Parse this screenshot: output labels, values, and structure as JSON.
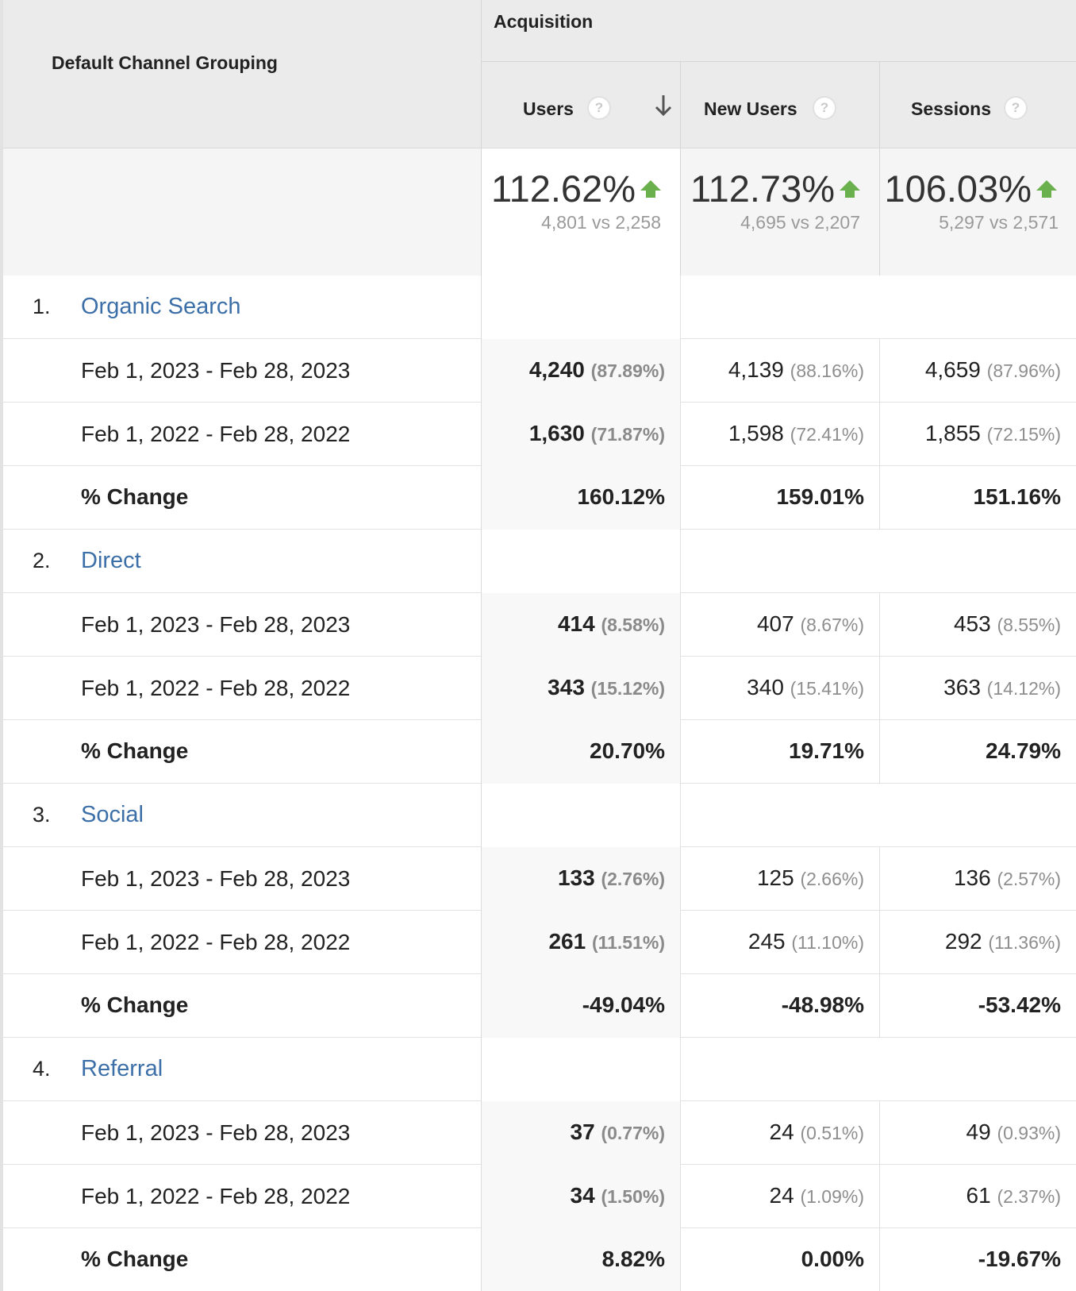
{
  "header": {
    "dimension_title": "Default Channel Grouping",
    "group_title": "Acquisition",
    "columns": [
      {
        "label": "Users",
        "help": "?",
        "sorted": true
      },
      {
        "label": "New Users",
        "help": "?"
      },
      {
        "label": "Sessions",
        "help": "?"
      }
    ]
  },
  "colors": {
    "up_arrow": "#6ab04c",
    "link": "#3c6fa8"
  },
  "summary": [
    {
      "pct": "112.62%",
      "compare": "4,801 vs 2,258"
    },
    {
      "pct": "112.73%",
      "compare": "4,695 vs 2,207"
    },
    {
      "pct": "106.03%",
      "compare": "5,297 vs 2,571"
    }
  ],
  "channels": [
    {
      "num": "1.",
      "name": "Organic Search",
      "current": {
        "label": "Feb 1, 2023 - Feb 28, 2023",
        "users": "4,240",
        "users_pct": "(87.89%)",
        "new_users": "4,139",
        "new_users_pct": "(88.16%)",
        "sessions": "4,659",
        "sessions_pct": "(87.96%)"
      },
      "previous": {
        "label": "Feb 1, 2022 - Feb 28, 2022",
        "users": "1,630",
        "users_pct": "(71.87%)",
        "new_users": "1,598",
        "new_users_pct": "(72.41%)",
        "sessions": "1,855",
        "sessions_pct": "(72.15%)"
      },
      "change": {
        "label": "% Change",
        "users": "160.12%",
        "new_users": "159.01%",
        "sessions": "151.16%"
      }
    },
    {
      "num": "2.",
      "name": "Direct",
      "current": {
        "label": "Feb 1, 2023 - Feb 28, 2023",
        "users": "414",
        "users_pct": "(8.58%)",
        "new_users": "407",
        "new_users_pct": "(8.67%)",
        "sessions": "453",
        "sessions_pct": "(8.55%)"
      },
      "previous": {
        "label": "Feb 1, 2022 - Feb 28, 2022",
        "users": "343",
        "users_pct": "(15.12%)",
        "new_users": "340",
        "new_users_pct": "(15.41%)",
        "sessions": "363",
        "sessions_pct": "(14.12%)"
      },
      "change": {
        "label": "% Change",
        "users": "20.70%",
        "new_users": "19.71%",
        "sessions": "24.79%"
      }
    },
    {
      "num": "3.",
      "name": "Social",
      "current": {
        "label": "Feb 1, 2023 - Feb 28, 2023",
        "users": "133",
        "users_pct": "(2.76%)",
        "new_users": "125",
        "new_users_pct": "(2.66%)",
        "sessions": "136",
        "sessions_pct": "(2.57%)"
      },
      "previous": {
        "label": "Feb 1, 2022 - Feb 28, 2022",
        "users": "261",
        "users_pct": "(11.51%)",
        "new_users": "245",
        "new_users_pct": "(11.10%)",
        "sessions": "292",
        "sessions_pct": "(11.36%)"
      },
      "change": {
        "label": "% Change",
        "users": "-49.04%",
        "new_users": "-48.98%",
        "sessions": "-53.42%"
      }
    },
    {
      "num": "4.",
      "name": "Referral",
      "current": {
        "label": "Feb 1, 2023 - Feb 28, 2023",
        "users": "37",
        "users_pct": "(0.77%)",
        "new_users": "24",
        "new_users_pct": "(0.51%)",
        "sessions": "49",
        "sessions_pct": "(0.93%)"
      },
      "previous": {
        "label": "Feb 1, 2022 - Feb 28, 2022",
        "users": "34",
        "users_pct": "(1.50%)",
        "new_users": "24",
        "new_users_pct": "(1.09%)",
        "sessions": "61",
        "sessions_pct": "(2.37%)"
      },
      "change": {
        "label": "% Change",
        "users": "8.82%",
        "new_users": "0.00%",
        "sessions": "-19.67%"
      }
    }
  ]
}
